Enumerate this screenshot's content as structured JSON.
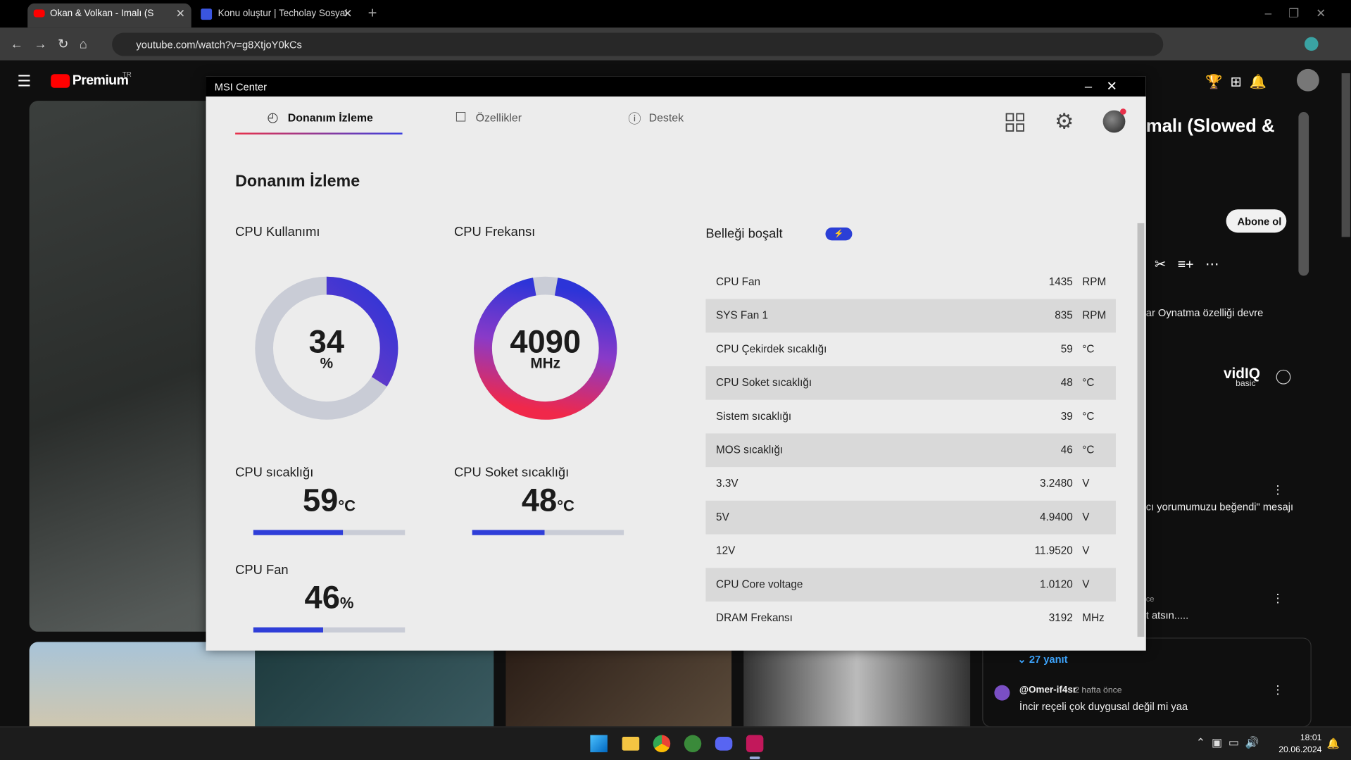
{
  "browser": {
    "tabs": [
      "Okan & Volkan - İmalı (Slow",
      "Konu oluştur | Techolay Sosyal"
    ],
    "url": "youtube.com/watch?v=g8XtjoY0kCs"
  },
  "youtube": {
    "logo": "Premium",
    "region": "TR",
    "video_title": "malı (Slowed &",
    "subscribe": "Abone ol",
    "notice": "ar Oynatma özelliği devre",
    "vidiq": {
      "name": "vidIQ",
      "plan": "basic"
    },
    "comments": [
      {
        "text": "cı yorumumuzu beğendi\" mesajı"
      },
      {
        "meta": "ce",
        "text": "t atsın....."
      },
      {
        "replies": "27 yanıt"
      },
      {
        "author": "@Omer-if4sr",
        "time": "2 hafta önce",
        "text": "İncir reçeli çok duygusal değil mi yaa"
      }
    ]
  },
  "msi": {
    "window_title": "MSI Center",
    "tabs": [
      "Donanım İzleme",
      "Özellikler",
      "Destek"
    ],
    "heading": "Donanım İzleme",
    "usage": {
      "label": "CPU Kullanımı",
      "value": 34,
      "unit": "%"
    },
    "frequency": {
      "label": "CPU Frekansı",
      "value": 4090,
      "unit": "MHz"
    },
    "bars": [
      {
        "label": "CPU sıcaklığı",
        "value": 59,
        "unit": "°C"
      },
      {
        "label": "CPU Soket sıcaklığı",
        "value": 48,
        "unit": "°C"
      },
      {
        "label": "CPU Fan",
        "value": 46,
        "unit": "%"
      }
    ],
    "memory_clear": "Belleği boşalt",
    "sensors": [
      {
        "name": "CPU Fan",
        "value": "1435",
        "unit": "RPM"
      },
      {
        "name": "SYS Fan 1",
        "value": "835",
        "unit": "RPM"
      },
      {
        "name": "CPU Çekirdek sıcaklığı",
        "value": "59",
        "unit": "°C"
      },
      {
        "name": "CPU Soket sıcaklığı",
        "value": "48",
        "unit": "°C"
      },
      {
        "name": "Sistem sıcaklığı",
        "value": "39",
        "unit": "°C"
      },
      {
        "name": "MOS sıcaklığı",
        "value": "46",
        "unit": "°C"
      },
      {
        "name": "3.3V",
        "value": "3.2480",
        "unit": "V"
      },
      {
        "name": "5V",
        "value": "4.9400",
        "unit": "V"
      },
      {
        "name": "12V",
        "value": "11.9520",
        "unit": "V"
      },
      {
        "name": "CPU Core voltage",
        "value": "1.0120",
        "unit": "V"
      },
      {
        "name": "DRAM Frekansı",
        "value": "3192",
        "unit": "MHz"
      }
    ]
  },
  "taskbar": {
    "time": "18:01",
    "date": "20.06.2024"
  }
}
